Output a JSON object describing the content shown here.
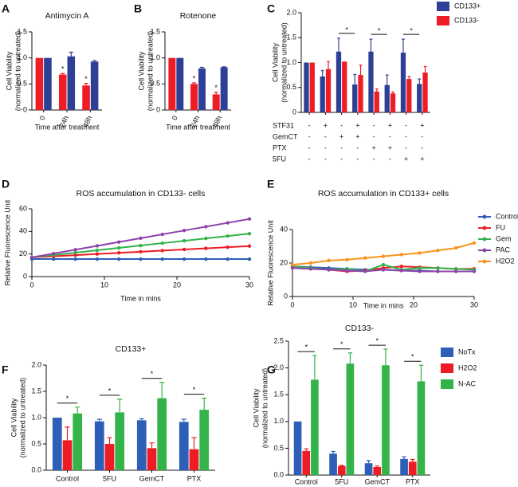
{
  "chart_data": [
    {
      "type": "bar",
      "panel": "A",
      "title": "Antimycin A",
      "xlabel": "Time after treatment",
      "ylabel": [
        "Cell Viability",
        "(normalized to untreated)"
      ],
      "categories": [
        "0",
        "24h",
        "48h"
      ],
      "series": [
        {
          "color": "#ee1c25",
          "values": [
            1.0,
            0.68,
            0.47
          ],
          "errors": [
            0.0,
            0.02,
            0.04
          ]
        },
        {
          "color": "#2e3f96",
          "values": [
            1.0,
            1.03,
            0.93
          ],
          "errors": [
            0.0,
            0.08,
            0.02
          ]
        }
      ],
      "ylim": [
        0,
        1.5
      ],
      "yticks": [
        0,
        0.5,
        {
          "value": 1,
          "label": "1.0"
        },
        1.5
      ],
      "annotations": [
        {
          "text": "*",
          "category": 1,
          "series": [
            0
          ]
        },
        {
          "text": "*",
          "category": 2,
          "series": [
            0
          ]
        }
      ]
    },
    {
      "type": "bar",
      "panel": "B",
      "title": "Rotenone",
      "xlabel": "Time after treatment",
      "ylabel": [
        "Cell Viability",
        "(normalized to untreated)"
      ],
      "categories": [
        "0",
        "24h",
        "48h"
      ],
      "series": [
        {
          "color": "#ee1c25",
          "values": [
            1.0,
            0.5,
            0.3
          ],
          "errors": [
            0.0,
            0.02,
            0.04
          ]
        },
        {
          "color": "#2e3f96",
          "values": [
            1.0,
            0.8,
            0.82
          ],
          "errors": [
            0.0,
            0.02,
            0.01
          ]
        }
      ],
      "ylim": [
        0,
        1.5
      ],
      "yticks": [
        0,
        0.5,
        {
          "value": 1,
          "label": "1.0"
        },
        1.5
      ],
      "annotations": [
        {
          "text": "*",
          "category": 1,
          "series": [
            0
          ]
        },
        {
          "text": "*",
          "category": 2,
          "series": [
            0
          ]
        }
      ]
    },
    {
      "type": "bar",
      "panel": "C",
      "ylabel": [
        "Cell Viability",
        "(normalized to untreated)"
      ],
      "categories": [
        null,
        null,
        null,
        null,
        null,
        null,
        null,
        null
      ],
      "series": [
        {
          "name": "CD133+",
          "color": "#2e3f96",
          "values": [
            1.0,
            0.72,
            1.22,
            0.56,
            1.22,
            0.55,
            1.2,
            0.57
          ],
          "errors": [
            0.0,
            0.12,
            0.27,
            0.2,
            0.25,
            0.2,
            0.27,
            0.1
          ]
        },
        {
          "name": "CD133-",
          "color": "#ee1c25",
          "values": [
            1.0,
            0.87,
            1.02,
            0.75,
            0.42,
            0.38,
            0.67,
            0.8
          ],
          "errors": [
            0.0,
            0.15,
            0.0,
            0.2,
            0.05,
            0.03,
            0.05,
            0.12
          ]
        }
      ],
      "ylim": [
        0,
        2
      ],
      "yticks": [
        0,
        0.5,
        {
          "value": 1,
          "label": "1.0"
        },
        1.5,
        {
          "value": 2,
          "label": "2.0"
        }
      ],
      "legend": true,
      "table": [
        {
          "label": "STF31",
          "cells": [
            "-",
            "+",
            "-",
            "+",
            "-",
            "+",
            "-",
            "+"
          ]
        },
        {
          "label": "GemCT",
          "cells": [
            "-",
            "-",
            "+",
            "+",
            "-",
            "-",
            "-",
            "-"
          ]
        },
        {
          "label": "PTX",
          "cells": [
            "-",
            "-",
            "-",
            "-",
            "+",
            "+",
            "-",
            "-"
          ]
        },
        {
          "label": "5FU",
          "cells": [
            "-",
            "-",
            "-",
            "-",
            "-",
            "-",
            "+",
            "+"
          ]
        }
      ],
      "annotations": [
        {
          "text": "*",
          "categories": [
            2,
            3
          ]
        },
        {
          "text": "*",
          "categories": [
            4,
            5
          ]
        },
        {
          "text": "*",
          "categories": [
            6,
            7
          ]
        }
      ]
    },
    {
      "type": "line",
      "panel": "D",
      "title": "ROS accumulation in CD133- cells",
      "xlabel": "Time in mins",
      "ylabel": [
        "Relative Fluorescence Unit"
      ],
      "x": [
        0,
        3,
        6,
        9,
        12,
        15,
        18,
        21,
        24,
        27,
        30
      ],
      "series": [
        {
          "name": "Control",
          "color": "#2e5fb8",
          "values": [
            15.5,
            15.5,
            15.5,
            15.5,
            15.5,
            15.5,
            15.5,
            15.5,
            15.5,
            15.5,
            15.5
          ]
        },
        {
          "name": "FU",
          "color": "#ee1c25",
          "values": [
            17,
            18,
            19,
            20,
            21,
            22,
            23,
            24,
            25,
            26,
            27
          ]
        },
        {
          "name": "Gem",
          "color": "#33b34a",
          "values": [
            17,
            19.1,
            21.2,
            23.3,
            25.4,
            27.5,
            29.6,
            31.7,
            33.8,
            35.9,
            38
          ]
        },
        {
          "name": "PAC",
          "color": "#8e44ad",
          "values": [
            17,
            20.4,
            23.8,
            27.2,
            30.6,
            34,
            37.4,
            40.8,
            44.2,
            47.6,
            51
          ]
        }
      ],
      "xlim": [
        0,
        30
      ],
      "xticks": [
        0,
        10,
        20,
        30
      ],
      "ylim": [
        0,
        60
      ],
      "yticks": [
        0,
        20,
        40,
        60
      ],
      "legend": false
    },
    {
      "type": "line",
      "panel": "E",
      "title": "ROS accumulation in CD133+ cells",
      "xlabel": "Time in mins",
      "ylabel": [
        "Relative Fluorescence Unit"
      ],
      "x": [
        0,
        3,
        6,
        9,
        12,
        15,
        18,
        21,
        24,
        27,
        30
      ],
      "series": [
        {
          "name": "Control",
          "color": "#2e5fb8",
          "values": [
            18,
            17.5,
            17,
            16.5,
            16,
            16,
            15.5,
            15.5,
            15,
            15,
            15
          ]
        },
        {
          "name": "FU",
          "color": "#ee1c25",
          "values": [
            18,
            17,
            16,
            15,
            15.5,
            17,
            18,
            17.5,
            17,
            16.5,
            16.5
          ]
        },
        {
          "name": "Gem",
          "color": "#33b34a",
          "values": [
            18,
            17,
            16,
            16.5,
            15,
            19,
            16,
            17,
            17,
            16.5,
            16
          ]
        },
        {
          "name": "PAC",
          "color": "#8e44ad",
          "values": [
            17,
            16.5,
            16,
            15.5,
            15,
            16,
            15.5,
            15,
            15,
            15,
            15
          ]
        },
        {
          "name": "H2O2",
          "color": "#f7941d",
          "values": [
            19,
            20,
            21.5,
            22,
            23,
            24,
            25,
            26,
            27.5,
            29,
            32
          ]
        }
      ],
      "xlim": [
        0,
        30
      ],
      "xticks": [
        0,
        10,
        20,
        30
      ],
      "ylim": [
        0,
        40
      ],
      "yticks": [
        0,
        20,
        40
      ],
      "legend": true
    },
    {
      "type": "bar",
      "panel": "F",
      "title": "CD133+",
      "ylabel": [
        "Cell Viability",
        "(normalized to untreated)"
      ],
      "categories": [
        "Control",
        "5FU",
        "GemCT",
        "PTX"
      ],
      "series": [
        {
          "name": "NoTx",
          "color": "#2e5fb8",
          "values": [
            1.0,
            0.93,
            0.95,
            0.92
          ],
          "errors": [
            0.0,
            0.04,
            0.03,
            0.05
          ]
        },
        {
          "name": "H2O2",
          "color": "#ee1c25",
          "values": [
            0.57,
            0.5,
            0.42,
            0.4
          ],
          "errors": [
            0.25,
            0.12,
            0.1,
            0.22
          ]
        },
        {
          "name": "N-AC",
          "color": "#33b34a",
          "values": [
            1.08,
            1.1,
            1.37,
            1.15
          ],
          "errors": [
            0.12,
            0.25,
            0.3,
            0.22
          ]
        }
      ],
      "ylim": [
        0,
        2
      ],
      "yticks": [
        {
          "value": 0,
          "label": "0.0"
        },
        0.5,
        {
          "value": 1,
          "label": "1.0"
        },
        1.5,
        {
          "value": 2,
          "label": "2.0"
        }
      ],
      "legend": false,
      "annotations": [
        {
          "text": "*",
          "category": 0,
          "series": [
            0,
            2
          ]
        },
        {
          "text": "*",
          "category": 1,
          "series": [
            0,
            2
          ]
        },
        {
          "text": "*",
          "category": 2,
          "series": [
            0,
            2
          ]
        },
        {
          "text": "*",
          "category": 3,
          "series": [
            0,
            2
          ]
        }
      ]
    },
    {
      "type": "bar",
      "panel": "G",
      "title": "CD133-",
      "ylabel": [
        "Cell Viability",
        "(normalized to untreated)"
      ],
      "categories": [
        "Control",
        "5FU",
        "GemCT",
        "PTX"
      ],
      "series": [
        {
          "name": "NoTx",
          "color": "#2e5fb8",
          "values": [
            1.0,
            0.4,
            0.22,
            0.3
          ],
          "errors": [
            0.0,
            0.04,
            0.05,
            0.04
          ]
        },
        {
          "name": "H2O2",
          "color": "#ee1c25",
          "values": [
            0.45,
            0.17,
            0.15,
            0.25
          ],
          "errors": [
            0.04,
            0.01,
            0.02,
            0.04
          ]
        },
        {
          "name": "N-AC",
          "color": "#33b34a",
          "values": [
            1.78,
            2.08,
            2.05,
            1.75
          ],
          "errors": [
            0.45,
            0.2,
            0.3,
            0.3
          ]
        }
      ],
      "ylim": [
        0,
        2.5
      ],
      "yticks": [
        {
          "value": 0,
          "label": "0.0"
        },
        0.5,
        {
          "value": 1,
          "label": "1.0"
        },
        1.5,
        {
          "value": 2,
          "label": "2.0"
        },
        2.5
      ],
      "legend": true,
      "annotations": [
        {
          "text": "*",
          "category": 0,
          "series": [
            0,
            2
          ]
        },
        {
          "text": "*",
          "category": 1,
          "series": [
            0,
            2
          ]
        },
        {
          "text": "*",
          "category": 2,
          "series": [
            0,
            2
          ]
        },
        {
          "text": "*",
          "category": 3,
          "series": [
            0,
            2
          ]
        }
      ]
    }
  ]
}
